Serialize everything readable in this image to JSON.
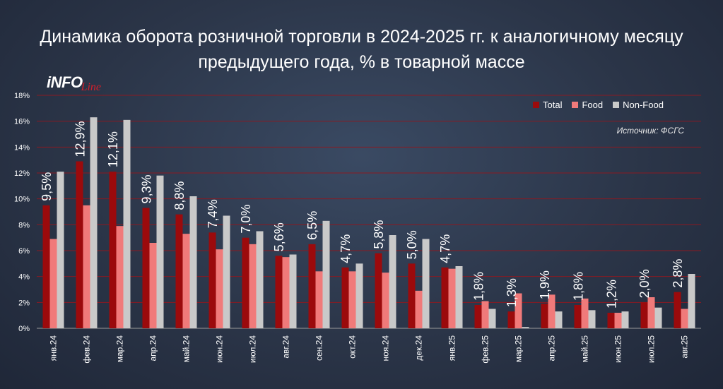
{
  "title_line1": "Динамика оборота розничной торговли в 2024-2025 гг. к аналогичному месяцу",
  "title_line2": "предыдущего года, % в товарной массе",
  "logo_main": "iNFO",
  "logo_sub": "Line",
  "source": "Источник: ФСГС",
  "colors": {
    "total": "#9b0a0c",
    "food": "#f07a7a",
    "nonfood": "#c9c9c9",
    "grid": "#8a1a22"
  },
  "chart_data": {
    "type": "bar",
    "categories": [
      "янв.24",
      "фев.24",
      "мар.24",
      "апр.24",
      "май.24",
      "июн.24",
      "июл.24",
      "авг.24",
      "сен.24",
      "окт.24",
      "ноя.24",
      "дек.24",
      "янв.25",
      "фев.25",
      "мар.25",
      "апр.25",
      "май.25",
      "июн.25",
      "июл.25",
      "авг.25"
    ],
    "series": [
      {
        "name": "Total",
        "values": [
          9.5,
          12.9,
          12.1,
          9.3,
          8.8,
          7.4,
          7.0,
          5.6,
          6.5,
          4.7,
          5.8,
          5.0,
          4.7,
          1.8,
          1.3,
          1.9,
          1.8,
          1.2,
          2.0,
          2.8
        ]
      },
      {
        "name": "Food",
        "values": [
          6.9,
          9.5,
          7.9,
          6.6,
          7.3,
          6.1,
          6.5,
          5.5,
          4.4,
          4.4,
          4.3,
          2.9,
          4.6,
          2.1,
          2.7,
          2.6,
          2.3,
          1.2,
          2.4,
          1.5
        ]
      },
      {
        "name": "Non-Food",
        "values": [
          12.1,
          16.3,
          16.1,
          11.8,
          10.2,
          8.7,
          7.5,
          5.7,
          8.3,
          5.0,
          7.2,
          6.9,
          4.8,
          1.5,
          0.1,
          1.3,
          1.4,
          1.3,
          1.6,
          4.2
        ]
      }
    ],
    "data_labels": [
      "9,5%",
      "12,9%",
      "12,1%",
      "9,3%",
      "8,8%",
      "7,4%",
      "7,0%",
      "5,6%",
      "6,5%",
      "4,7%",
      "5,8%",
      "5,0%",
      "4,7%",
      "1,8%",
      "1,3%",
      "1,9%",
      "1,8%",
      "1,2%",
      "2,0%",
      "2,8%"
    ],
    "y_ticks": [
      "0%",
      "2%",
      "4%",
      "6%",
      "8%",
      "10%",
      "12%",
      "14%",
      "16%",
      "18%"
    ],
    "ylim": [
      0,
      18
    ],
    "legend": "top-right",
    "grid": true
  }
}
